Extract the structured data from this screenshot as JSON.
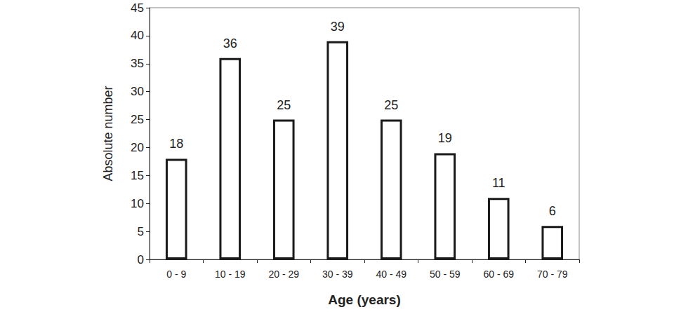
{
  "chart_data": {
    "type": "bar",
    "categories": [
      "0 - 9",
      "10 - 19",
      "20 - 29",
      "30 - 39",
      "40 - 49",
      "50 - 59",
      "60 - 69",
      "70 - 79"
    ],
    "values": [
      18,
      36,
      25,
      39,
      25,
      19,
      11,
      6
    ],
    "color": "#ffffff",
    "xlabel": "Age (years)",
    "ylabel": "Absolute number",
    "ylim": [
      0,
      45
    ],
    "yticks": [
      0,
      5,
      10,
      15,
      20,
      25,
      30,
      35,
      40,
      45
    ],
    "grid": false,
    "data_labels": true
  }
}
